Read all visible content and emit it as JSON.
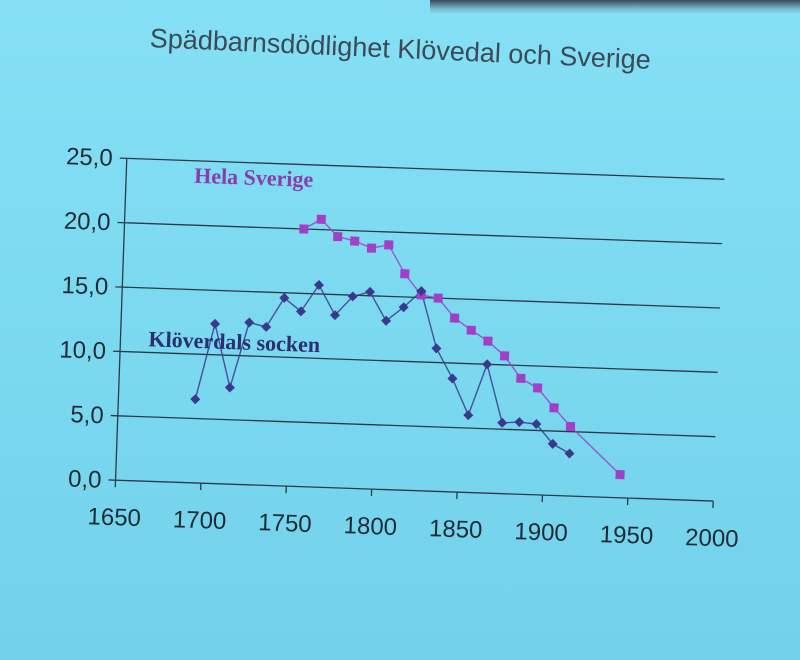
{
  "chart_data": {
    "type": "line",
    "title": "Spädbarnsdödlighet Klövedal och Sverige",
    "xlabel": "",
    "ylabel": "",
    "xlim": [
      1650,
      2000
    ],
    "ylim": [
      0,
      25
    ],
    "x_ticks": [
      "1650",
      "1700",
      "1750",
      "1800",
      "1850",
      "1900",
      "1950",
      "2000"
    ],
    "y_ticks": [
      "0,0",
      "5,0",
      "10,0",
      "15,0",
      "20,0",
      "25,0"
    ],
    "grid": "horizontal",
    "series": [
      {
        "name": "Hela Sverige",
        "color": "#a040c8",
        "marker": "square",
        "x": [
          1755,
          1765,
          1775,
          1785,
          1795,
          1805,
          1815,
          1825,
          1835,
          1845,
          1855,
          1865,
          1875,
          1885,
          1895,
          1905,
          1915,
          1945
        ],
        "y": [
          20.0,
          20.8,
          19.5,
          19.2,
          18.7,
          19.0,
          16.8,
          15.2,
          15.0,
          13.5,
          12.6,
          11.8,
          10.7,
          9.0,
          8.3,
          6.8,
          5.4,
          1.8
        ]
      },
      {
        "name": "Klöverdals socken",
        "color": "#3a3a8c",
        "marker": "diamond",
        "x": [
          1695,
          1705,
          1715,
          1725,
          1735,
          1745,
          1755,
          1765,
          1775,
          1785,
          1795,
          1805,
          1815,
          1825,
          1835,
          1845,
          1855,
          1865,
          1875,
          1885,
          1895,
          1905,
          1915
        ],
        "y": [
          6.5,
          12.4,
          7.5,
          12.6,
          12.3,
          14.6,
          13.6,
          15.7,
          13.4,
          14.9,
          15.3,
          13.1,
          14.2,
          15.5,
          11.1,
          8.8,
          6.0,
          10.0,
          5.5,
          5.6,
          5.5,
          4.0,
          3.3
        ]
      }
    ]
  }
}
